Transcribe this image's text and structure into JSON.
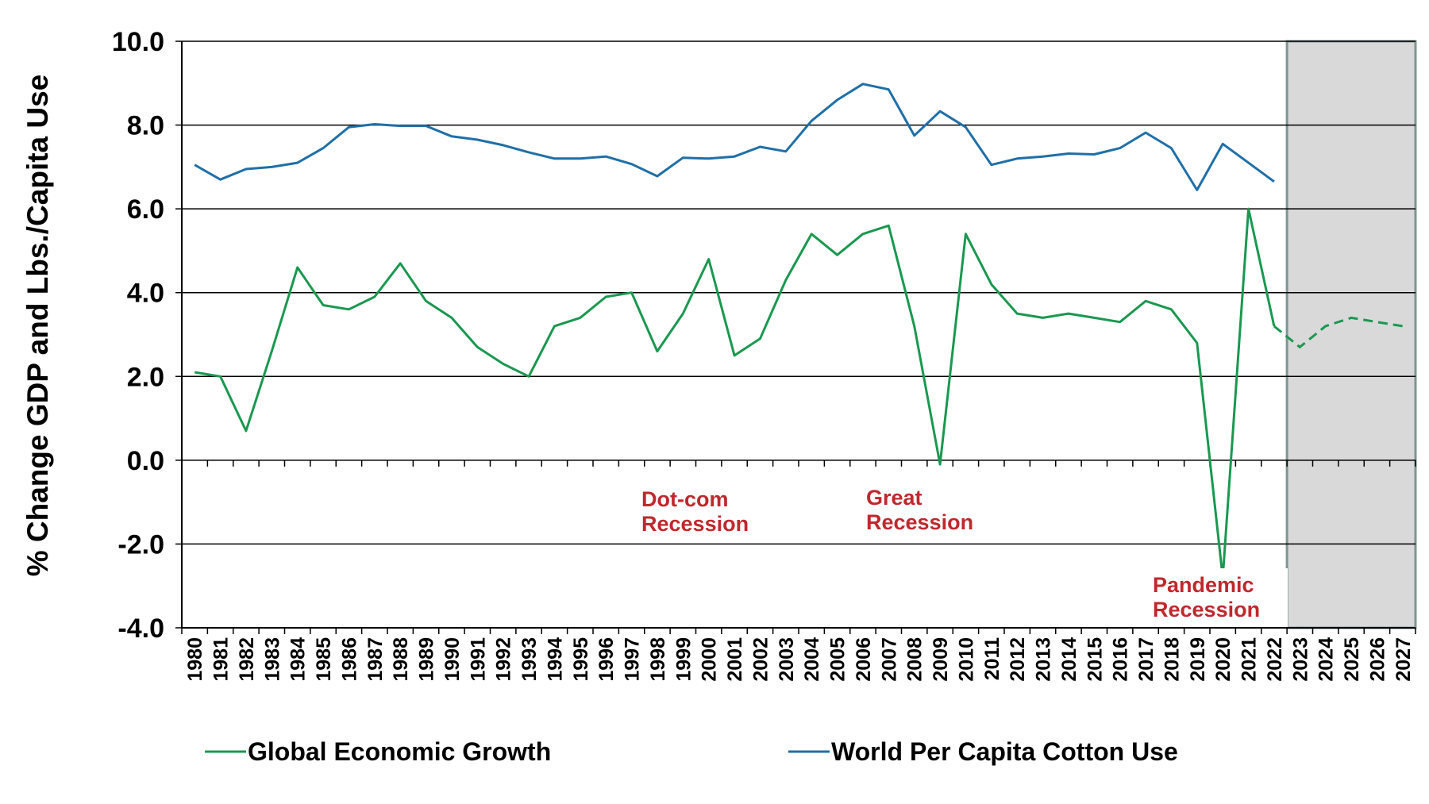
{
  "chart_data": {
    "type": "line",
    "ylabel": "% Change GDP and Lbs./Capita Use",
    "ylim": [
      -4.0,
      10.0
    ],
    "yticks": [
      "-4.0",
      "-2.0",
      "0.0",
      "2.0",
      "4.0",
      "6.0",
      "8.0",
      "10.0"
    ],
    "categories": [
      "1980",
      "1981",
      "1982",
      "1983",
      "1984",
      "1985",
      "1986",
      "1987",
      "1988",
      "1989",
      "1990",
      "1991",
      "1992",
      "1993",
      "1994",
      "1995",
      "1996",
      "1997",
      "1998",
      "1999",
      "2000",
      "2001",
      "2002",
      "2003",
      "2004",
      "2005",
      "2006",
      "2007",
      "2008",
      "2009",
      "2010",
      "2011",
      "2012",
      "2013",
      "2014",
      "2015",
      "2016",
      "2017",
      "2018",
      "2019",
      "2020",
      "2021",
      "2022",
      "2023",
      "2024",
      "2025",
      "2026",
      "2027"
    ],
    "grid": "horizontal",
    "legend_position": "bottom",
    "projection_start": "2023",
    "series": [
      {
        "name": "Global Economic Growth",
        "color": "#1a9850",
        "values": [
          2.1,
          2.0,
          0.7,
          2.6,
          4.6,
          3.7,
          3.6,
          3.9,
          4.7,
          3.8,
          3.4,
          2.7,
          2.3,
          2.0,
          3.2,
          3.4,
          3.9,
          4.0,
          2.6,
          3.5,
          4.8,
          2.5,
          2.9,
          4.3,
          5.4,
          4.9,
          5.4,
          5.6,
          3.2,
          -0.1,
          5.4,
          4.2,
          3.5,
          3.4,
          3.5,
          3.4,
          3.3,
          3.8,
          3.6,
          2.8,
          -2.8,
          6.0,
          3.2,
          2.7,
          3.2,
          3.4,
          3.3,
          3.2
        ],
        "projected_from": "2022"
      },
      {
        "name": "World Per Capita Cotton Use",
        "color": "#1f6fa8",
        "values": [
          7.05,
          6.7,
          6.95,
          7.0,
          7.1,
          7.45,
          7.95,
          8.02,
          7.98,
          7.98,
          7.73,
          7.65,
          7.52,
          7.35,
          7.2,
          7.2,
          7.25,
          7.07,
          6.78,
          7.22,
          7.2,
          7.25,
          7.48,
          7.37,
          8.1,
          8.6,
          8.98,
          8.85,
          7.75,
          8.33,
          7.95,
          7.05,
          7.2,
          7.25,
          7.32,
          7.3,
          7.45,
          7.82,
          7.45,
          6.45,
          7.55,
          7.1,
          6.65,
          null,
          null,
          null,
          null,
          null
        ]
      }
    ],
    "annotations": [
      {
        "text_line1": "Dot-com",
        "text_line2": "Recession",
        "color": "#c0282d"
      },
      {
        "text_line1": "Great",
        "text_line2": "Recession",
        "color": "#c0282d"
      },
      {
        "text_line1": "Pandemic",
        "text_line2": "Recession",
        "color": "#c0282d"
      }
    ]
  }
}
